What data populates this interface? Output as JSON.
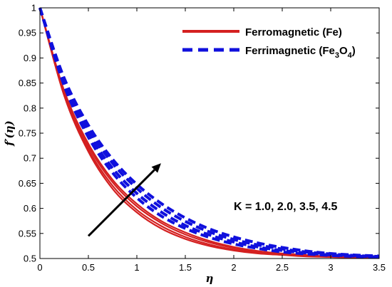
{
  "chart_data": {
    "type": "line",
    "xlabel": "η",
    "ylabel": "f′(η)",
    "xlim": [
      0,
      3.5
    ],
    "ylim": [
      0.5,
      1.0
    ],
    "xticks": [
      "0",
      "0.5",
      "1",
      "1.5",
      "2",
      "2.5",
      "3",
      "3.5"
    ],
    "yticks": [
      "0.5",
      "0.55",
      "0.6",
      "0.65",
      "0.7",
      "0.75",
      "0.8",
      "0.85",
      "0.9",
      "0.95",
      "1"
    ],
    "legend": {
      "placement": "top-right",
      "entries": [
        {
          "main": "Ferromagnetic (Fe)",
          "sub1": "",
          "mid": "",
          "sub2": "",
          "close": ""
        },
        {
          "main": "Ferrimagnetic (Fe",
          "sub1": "3",
          "mid": "O",
          "sub2": "4",
          "close": ")"
        }
      ]
    },
    "annotation": "K = 1.0, 2.0, 3.5, 4.5",
    "arrow": {
      "from": [
        0.5,
        0.545
      ],
      "to": [
        1.25,
        0.69
      ]
    },
    "colors": {
      "ferromagnetic": "#d42020",
      "ferrimagnetic": "#1010dd"
    },
    "series": [
      {
        "group": "ferromagnetic",
        "K": 1.0,
        "x": [
          0,
          0.25,
          0.5,
          0.75,
          1.0,
          1.25,
          1.5,
          1.75,
          2.0,
          2.25,
          2.5,
          2.75,
          3.0,
          3.25,
          3.5
        ],
        "y": [
          1.0,
          0.825,
          0.713,
          0.639,
          0.592,
          0.56,
          0.539,
          0.525,
          0.516,
          0.51,
          0.507,
          0.504,
          0.503,
          0.502,
          0.501
        ]
      },
      {
        "group": "ferromagnetic",
        "K": 2.0,
        "x": [
          0,
          0.25,
          0.5,
          0.75,
          1.0,
          1.25,
          1.5,
          1.75,
          2.0,
          2.25,
          2.5,
          2.75,
          3.0,
          3.25,
          3.5
        ],
        "y": [
          1.0,
          0.828,
          0.718,
          0.645,
          0.597,
          0.565,
          0.543,
          0.528,
          0.518,
          0.512,
          0.508,
          0.505,
          0.503,
          0.502,
          0.501
        ]
      },
      {
        "group": "ferromagnetic",
        "K": 3.5,
        "x": [
          0,
          0.25,
          0.5,
          0.75,
          1.0,
          1.25,
          1.5,
          1.75,
          2.0,
          2.25,
          2.5,
          2.75,
          3.0,
          3.25,
          3.5
        ],
        "y": [
          1.0,
          0.832,
          0.724,
          0.652,
          0.604,
          0.571,
          0.548,
          0.532,
          0.521,
          0.514,
          0.509,
          0.506,
          0.504,
          0.503,
          0.502
        ]
      },
      {
        "group": "ferromagnetic",
        "K": 4.5,
        "x": [
          0,
          0.25,
          0.5,
          0.75,
          1.0,
          1.25,
          1.5,
          1.75,
          2.0,
          2.25,
          2.5,
          2.75,
          3.0,
          3.25,
          3.5
        ],
        "y": [
          1.0,
          0.835,
          0.729,
          0.657,
          0.609,
          0.575,
          0.552,
          0.535,
          0.523,
          0.515,
          0.51,
          0.507,
          0.504,
          0.503,
          0.502
        ]
      },
      {
        "group": "ferrimagnetic",
        "K": 1.0,
        "x": [
          0,
          0.25,
          0.5,
          0.75,
          1.0,
          1.25,
          1.5,
          1.75,
          2.0,
          2.25,
          2.5,
          2.75,
          3.0,
          3.25,
          3.5
        ],
        "y": [
          1.0,
          0.845,
          0.742,
          0.671,
          0.621,
          0.585,
          0.56,
          0.542,
          0.529,
          0.52,
          0.513,
          0.509,
          0.506,
          0.504,
          0.503
        ]
      },
      {
        "group": "ferrimagnetic",
        "K": 2.0,
        "x": [
          0,
          0.25,
          0.5,
          0.75,
          1.0,
          1.25,
          1.5,
          1.75,
          2.0,
          2.25,
          2.5,
          2.75,
          3.0,
          3.25,
          3.5
        ],
        "y": [
          1.0,
          0.85,
          0.75,
          0.68,
          0.63,
          0.593,
          0.566,
          0.547,
          0.533,
          0.523,
          0.516,
          0.511,
          0.507,
          0.505,
          0.503
        ]
      },
      {
        "group": "ferrimagnetic",
        "K": 3.5,
        "x": [
          0,
          0.25,
          0.5,
          0.75,
          1.0,
          1.25,
          1.5,
          1.75,
          2.0,
          2.25,
          2.5,
          2.75,
          3.0,
          3.25,
          3.5
        ],
        "y": [
          1.0,
          0.856,
          0.759,
          0.69,
          0.64,
          0.602,
          0.574,
          0.553,
          0.538,
          0.527,
          0.519,
          0.513,
          0.509,
          0.506,
          0.504
        ]
      },
      {
        "group": "ferrimagnetic",
        "K": 4.5,
        "x": [
          0,
          0.25,
          0.5,
          0.75,
          1.0,
          1.25,
          1.5,
          1.75,
          2.0,
          2.25,
          2.5,
          2.75,
          3.0,
          3.25,
          3.5
        ],
        "y": [
          1.0,
          0.86,
          0.766,
          0.698,
          0.648,
          0.61,
          0.581,
          0.559,
          0.543,
          0.531,
          0.522,
          0.515,
          0.51,
          0.507,
          0.505
        ]
      }
    ]
  }
}
